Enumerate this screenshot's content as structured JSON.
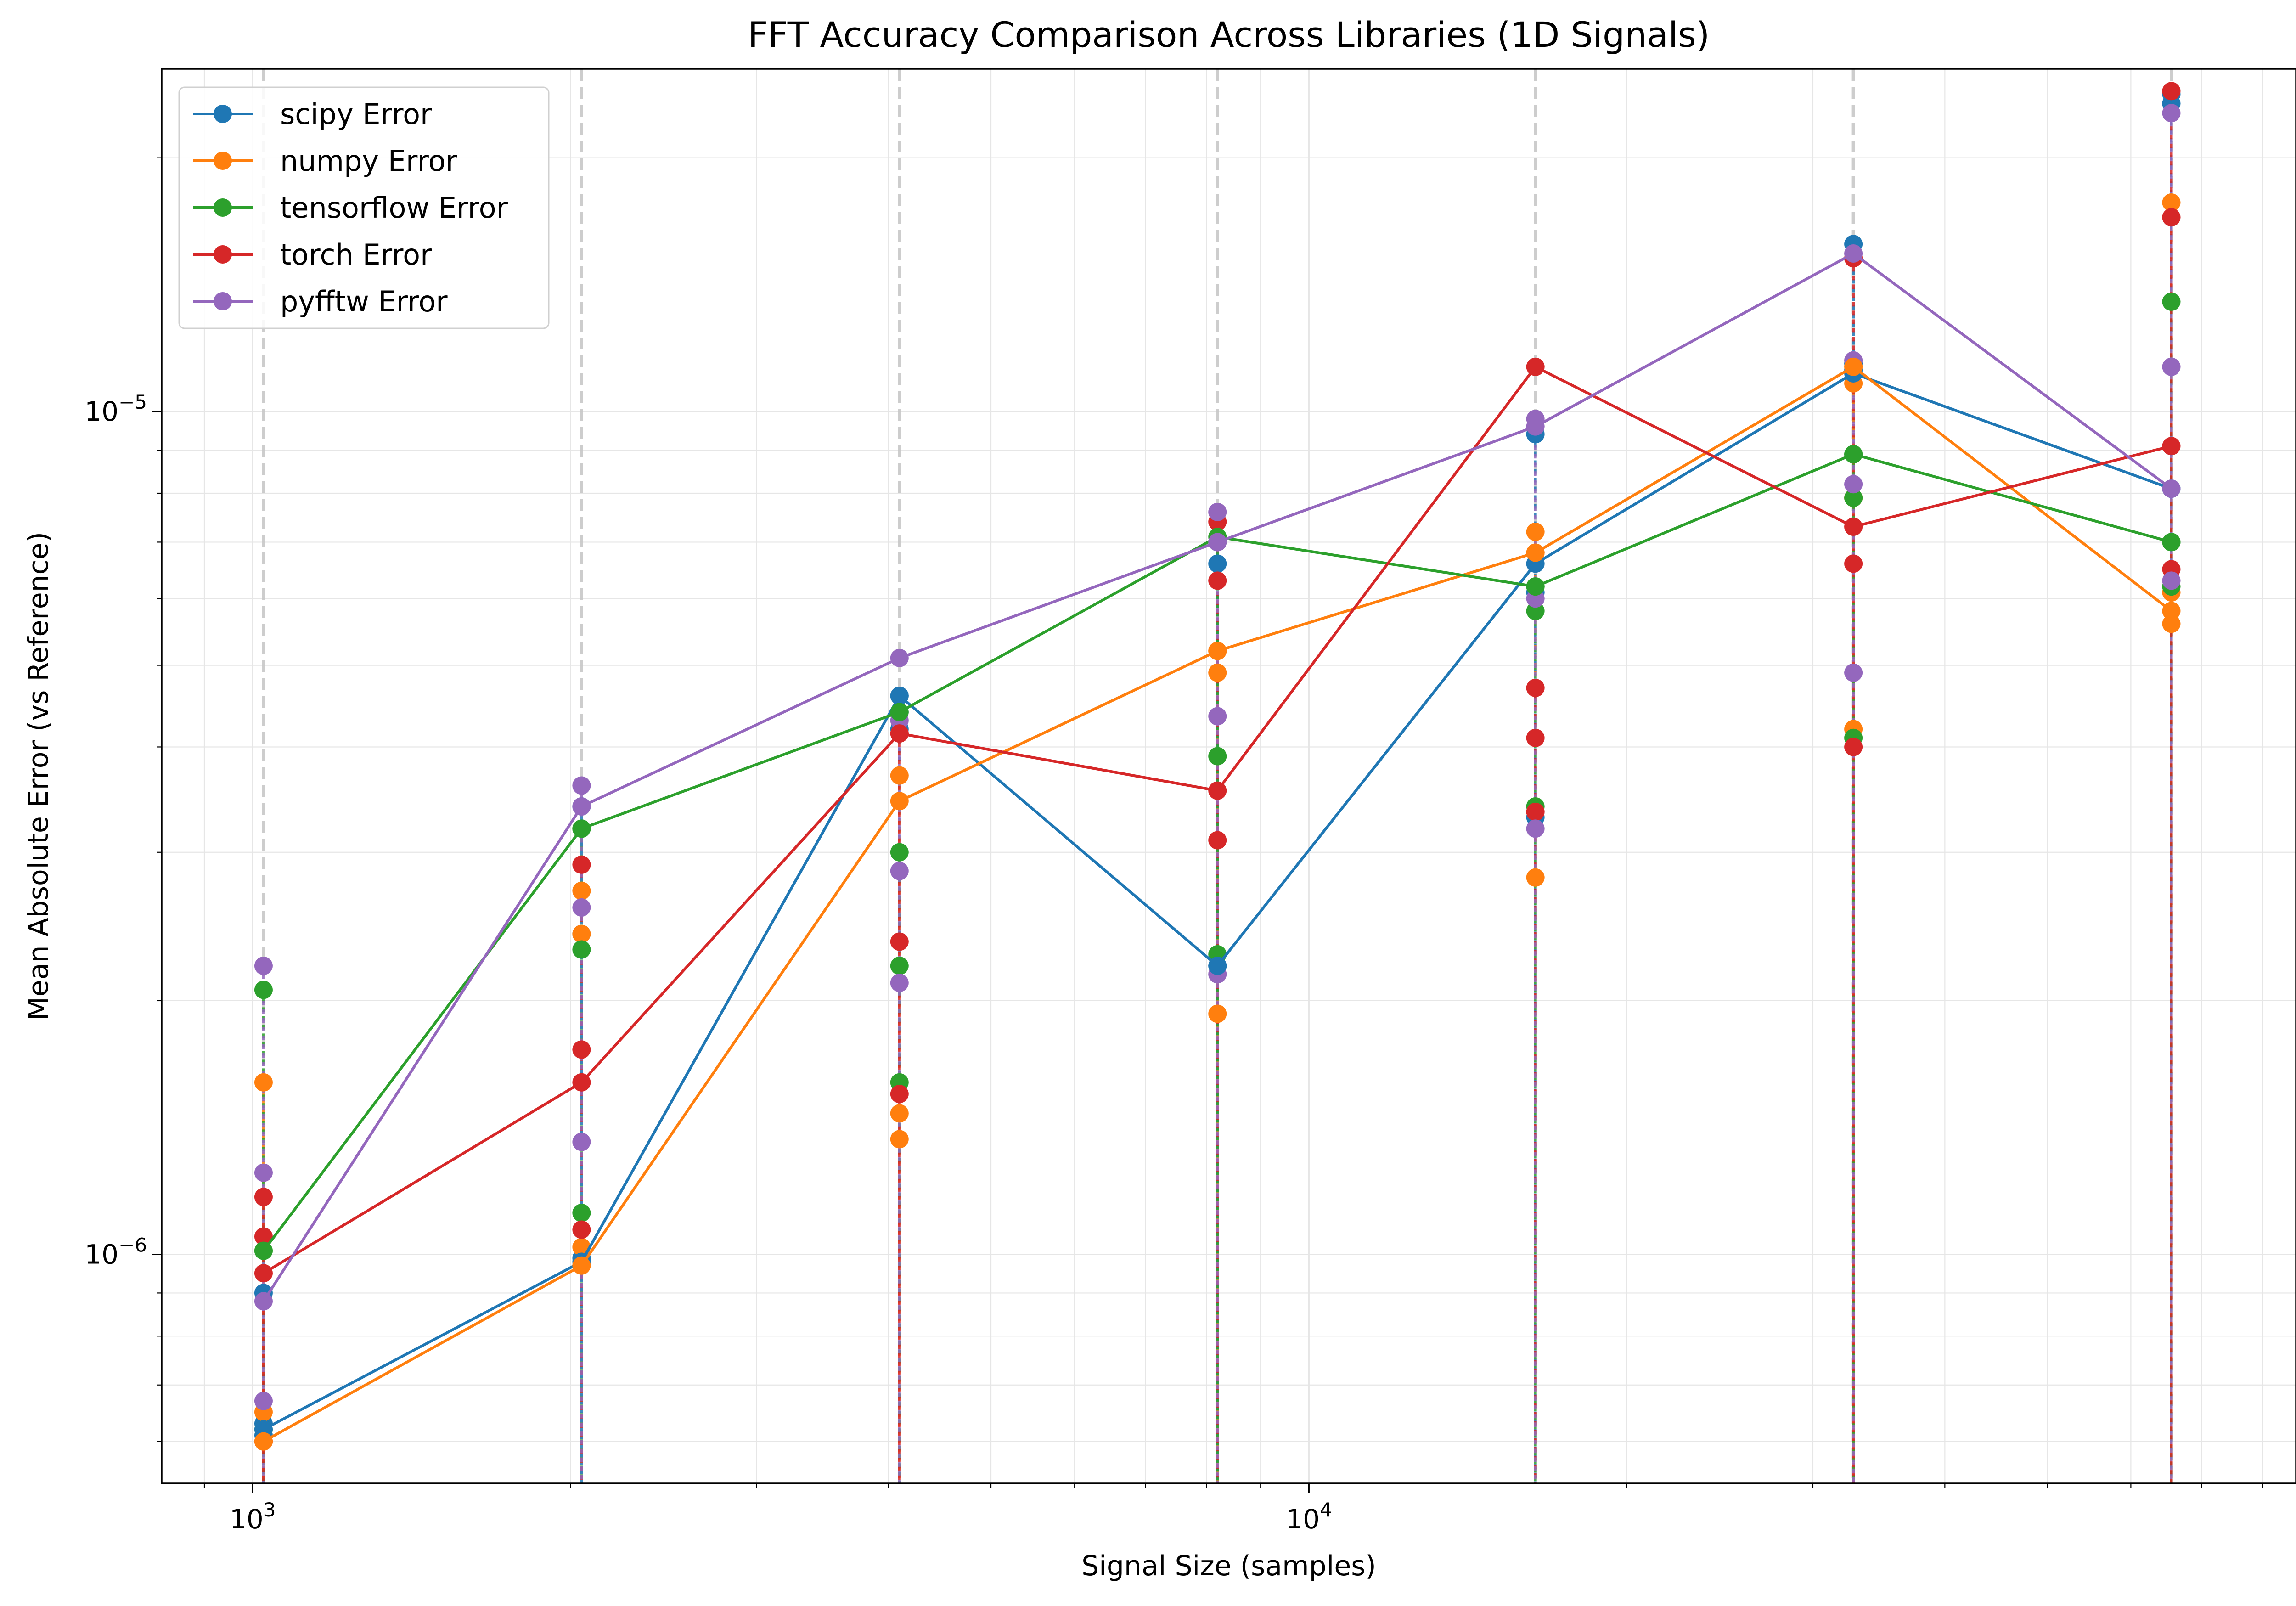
{
  "chart_data": {
    "type": "line",
    "title": "FFT Accuracy Comparison Across Libraries (1D Signals)",
    "xlabel": "Signal Size (samples)",
    "ylabel": "Mean Absolute Error (vs Reference)",
    "xscale": "log",
    "yscale": "log",
    "xlim": [
      820,
      86000
    ],
    "ylim": [
      5.35e-07,
      2.55e-05
    ],
    "x_ticks": [
      {
        "value": 1000,
        "label": "10^3"
      },
      {
        "value": 10000,
        "label": "10^4"
      }
    ],
    "y_ticks": [
      {
        "value": 1e-06,
        "label": "10^-6"
      },
      {
        "value": 1e-05,
        "label": "10^-5"
      }
    ],
    "grid": true,
    "legend_position": "top-left",
    "x": [
      1024,
      2048,
      4096,
      8192,
      16384,
      32768,
      65536
    ],
    "series": [
      {
        "name": "scipy Error",
        "color": "#1f77b4",
        "values": [
          6.2e-07,
          9.8e-07,
          4.6e-06,
          2.2e-06,
          6.6e-06,
          1.11e-05,
          8.1e-06
        ],
        "trials": [
          [
            6.3e-07,
            6.1e-07,
            9e-07
          ],
          [
            9.9e-07,
            2.4e-06,
            3.4e-06
          ],
          [
            4.6e-06,
            4.4e-06,
            4.2e-06
          ],
          [
            2.2e-06,
            6.6e-06,
            7e-06
          ],
          [
            9.4e-06,
            6.1e-06,
            3.3e-06
          ],
          [
            1.14e-05,
            1.12e-05,
            1.58e-05
          ],
          [
            2.38e-05,
            2.32e-05,
            8.1e-06
          ]
        ]
      },
      {
        "name": "numpy Error",
        "color": "#ff7f0e",
        "values": [
          6e-07,
          9.7e-07,
          3.45e-06,
          5.2e-06,
          6.8e-06,
          1.13e-05,
          5.8e-06
        ],
        "trials": [
          [
            1.6e-06,
            6e-07,
            6.5e-07
          ],
          [
            1.02e-06,
            2.7e-06,
            2.4e-06
          ],
          [
            3.7e-06,
            1.47e-06,
            1.37e-06
          ],
          [
            5.2e-06,
            4.9e-06,
            1.93e-06
          ],
          [
            6.8e-06,
            7.2e-06,
            2.8e-06
          ],
          [
            1.08e-05,
            4.2e-06,
            7.9e-06
          ],
          [
            1.77e-05,
            6.1e-06,
            5.6e-06
          ]
        ]
      },
      {
        "name": "tensorflow Error",
        "color": "#2ca02c",
        "values": [
          1.01e-06,
          3.2e-06,
          4.4e-06,
          7.1e-06,
          6.2e-06,
          8.9e-06,
          7e-06
        ],
        "trials": [
          [
            2.06e-06,
            1.01e-06,
            6.2e-07
          ],
          [
            3.2e-06,
            2.3e-06,
            1.12e-06
          ],
          [
            3e-06,
            2.2e-06,
            1.6e-06
          ],
          [
            3.9e-06,
            2.27e-06,
            7e-06
          ],
          [
            6.2e-06,
            5.8e-06,
            3.4e-06
          ],
          [
            8.9e-06,
            4.1e-06,
            7.9e-06
          ],
          [
            1.35e-05,
            7e-06,
            6.2e-06
          ]
        ]
      },
      {
        "name": "torch Error",
        "color": "#d62728",
        "values": [
          9.5e-07,
          1.6e-06,
          4.15e-06,
          3.55e-06,
          1.13e-05,
          7.3e-06,
          9.1e-06
        ],
        "trials": [
          [
            1.17e-06,
            1.05e-06,
            6e-07
          ],
          [
            2.9e-06,
            1.07e-06,
            1.75e-06
          ],
          [
            2.35e-06,
            1.55e-06,
            4.15e-06
          ],
          [
            3.1e-06,
            6.3e-06,
            7.4e-06
          ],
          [
            4.7e-06,
            4.1e-06,
            3.35e-06
          ],
          [
            6.6e-06,
            4e-06,
            1.52e-05
          ],
          [
            1.7e-05,
            6.5e-06,
            2.4e-05
          ]
        ]
      },
      {
        "name": "pyfftw Error",
        "color": "#9467bd",
        "values": [
          8.8e-07,
          3.4e-06,
          5.1e-06,
          7e-06,
          9.6e-06,
          1.54e-05,
          8.1e-06
        ],
        "trials": [
          [
            2.2e-06,
            1.25e-06,
            6.7e-07
          ],
          [
            3.6e-06,
            2.58e-06,
            1.36e-06
          ],
          [
            4.3e-06,
            2.85e-06,
            2.1e-06
          ],
          [
            7.6e-06,
            4.35e-06,
            2.15e-06
          ],
          [
            9.8e-06,
            6e-06,
            3.2e-06
          ],
          [
            1.15e-05,
            8.2e-06,
            4.9e-06
          ],
          [
            2.26e-05,
            1.13e-05,
            6.3e-06
          ]
        ]
      }
    ]
  }
}
